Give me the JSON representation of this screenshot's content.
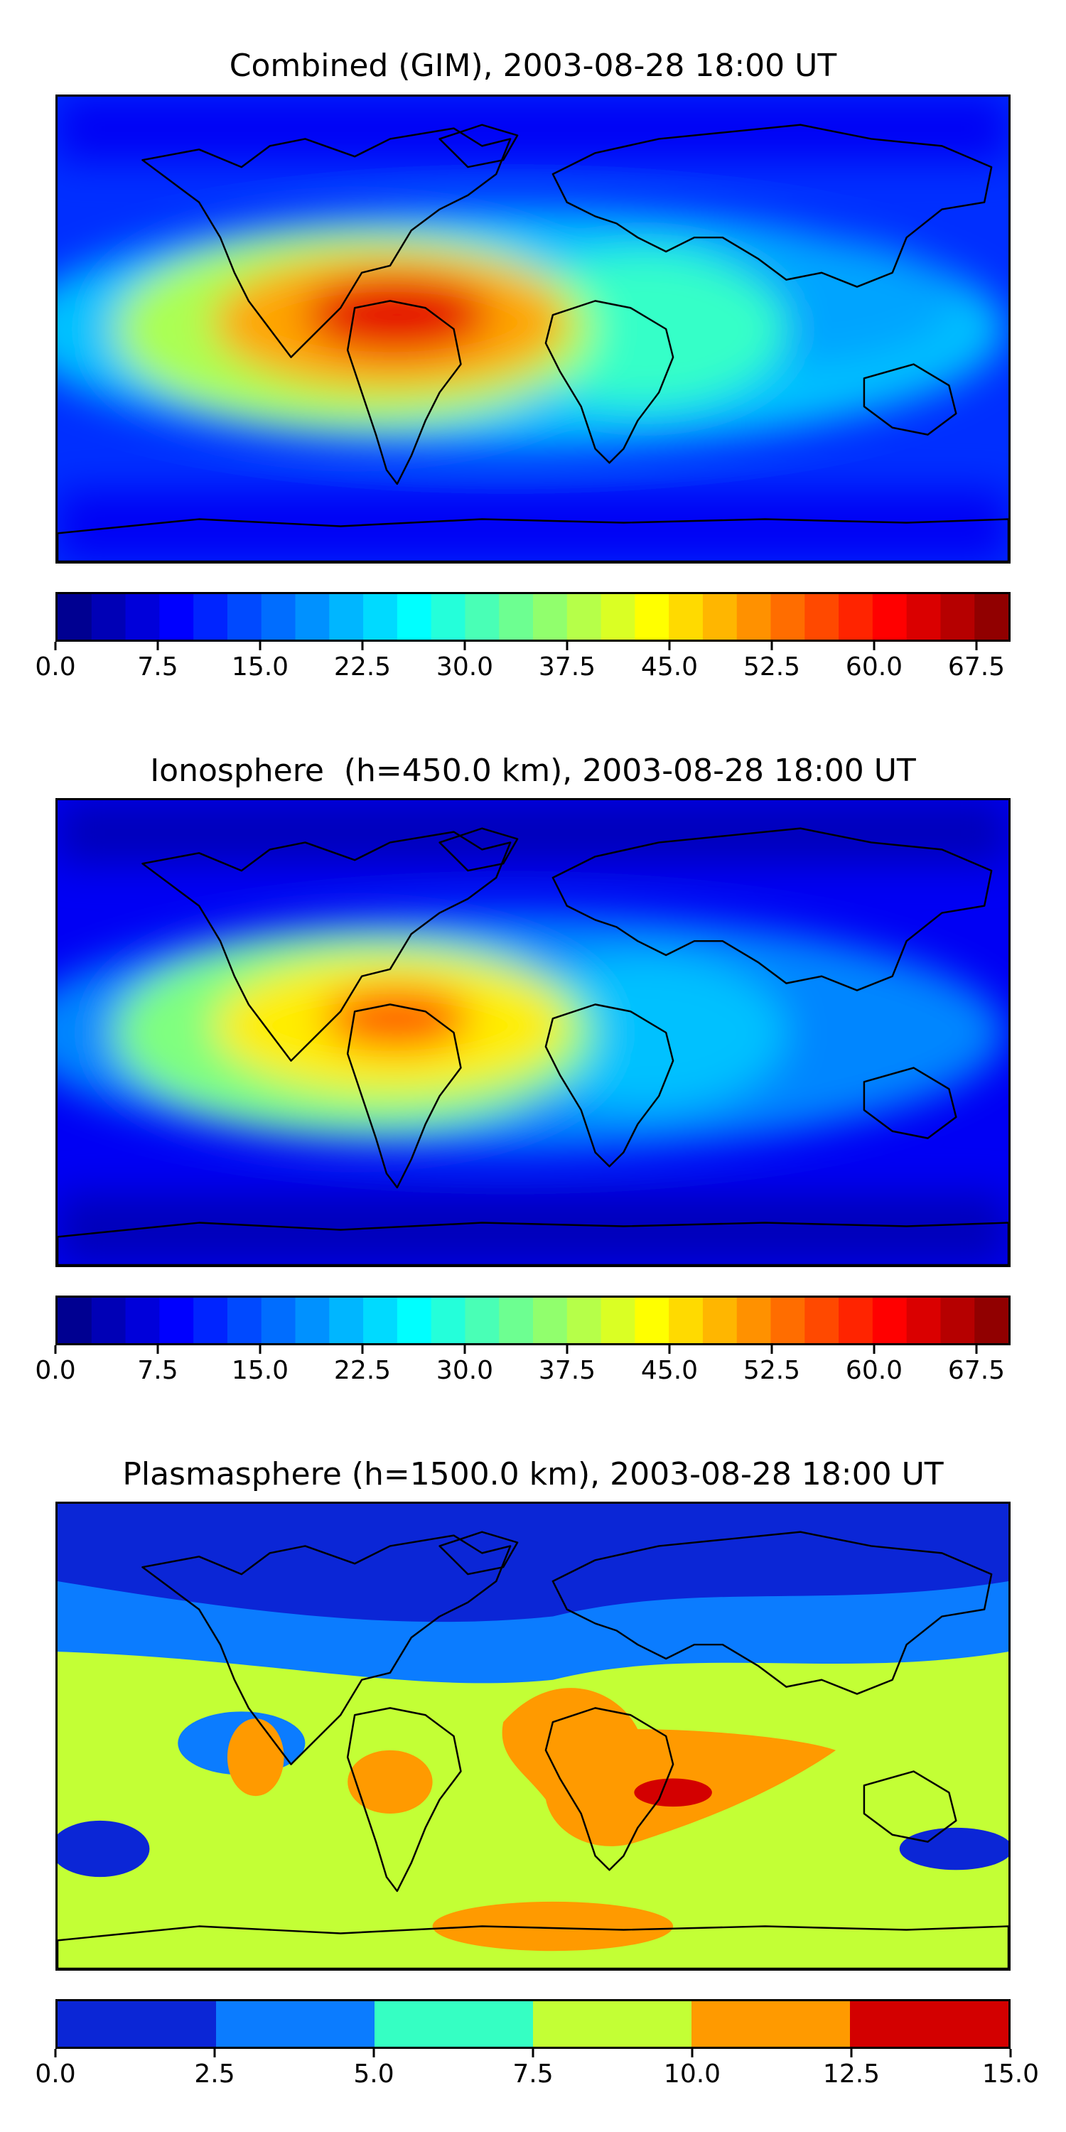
{
  "chart_data": [
    {
      "type": "heatmap",
      "title": "Combined (GIM), 2003-08-28 18:00 UT",
      "xlabel": "",
      "ylabel": "",
      "grid": false,
      "colorbar": {
        "range": [
          0.0,
          70.0
        ],
        "levels": 28,
        "tick_labels": [
          "0.0",
          "7.5",
          "15.0",
          "22.5",
          "30.0",
          "37.5",
          "45.0",
          "52.5",
          "60.0",
          "67.5"
        ],
        "tick_values": [
          0.0,
          7.5,
          15.0,
          22.5,
          30.0,
          37.5,
          45.0,
          52.5,
          60.0,
          67.5
        ]
      },
      "features": [
        {
          "region": "background",
          "value": 12
        },
        {
          "region": "equatorial band",
          "value": 22
        },
        {
          "region": "eastern Pacific / Atlantic crest",
          "value": 38
        },
        {
          "region": "Atlantic core",
          "value": 50
        },
        {
          "region": "South America peak",
          "value": 63
        },
        {
          "region": "Africa band",
          "value": 30
        },
        {
          "region": "Asia / Indian Ocean tail",
          "value": 20
        },
        {
          "region": "high latitudes",
          "value": 8
        }
      ]
    },
    {
      "type": "heatmap",
      "title": "Ionosphere  (h=450.0 km), 2003-08-28 18:00 UT",
      "xlabel": "",
      "ylabel": "",
      "grid": false,
      "colorbar": {
        "range": [
          0.0,
          70.0
        ],
        "levels": 28,
        "tick_labels": [
          "0.0",
          "7.5",
          "15.0",
          "22.5",
          "30.0",
          "37.5",
          "45.0",
          "52.5",
          "60.0",
          "67.5"
        ],
        "tick_values": [
          0.0,
          7.5,
          15.0,
          22.5,
          30.0,
          37.5,
          45.0,
          52.5,
          60.0,
          67.5
        ]
      },
      "features": [
        {
          "region": "background",
          "value": 8
        },
        {
          "region": "equatorial band",
          "value": 18
        },
        {
          "region": "eastern Pacific / Atlantic crest",
          "value": 35
        },
        {
          "region": "Atlantic core",
          "value": 45
        },
        {
          "region": "South America peak",
          "value": 55
        },
        {
          "region": "Africa band",
          "value": 22
        },
        {
          "region": "high latitudes",
          "value": 4
        }
      ]
    },
    {
      "type": "heatmap",
      "title": "Plasmasphere (h=1500.0 km), 2003-08-28 18:00 UT",
      "xlabel": "",
      "ylabel": "",
      "grid": false,
      "colorbar": {
        "range": [
          0.0,
          15.0
        ],
        "levels": 6,
        "tick_labels": [
          "0.0",
          "2.5",
          "5.0",
          "7.5",
          "10.0",
          "12.5",
          "15.0"
        ],
        "tick_values": [
          0.0,
          2.5,
          5.0,
          7.5,
          10.0,
          12.5,
          15.0
        ]
      },
      "features": [
        {
          "region": "northern high latitudes",
          "value": 1.5
        },
        {
          "region": "northern mid latitudes",
          "value": 4
        },
        {
          "region": "tropics",
          "value": 8.5
        },
        {
          "region": "southern Africa / Indian Ocean",
          "value": 11
        },
        {
          "region": "Madagascar maximum",
          "value": 13
        },
        {
          "region": "southern ocean lows",
          "value": 2
        }
      ]
    }
  ],
  "colors": {
    "jet_stops": [
      "#00007f",
      "#0000ff",
      "#007fff",
      "#00ffff",
      "#7fff7f",
      "#ffff00",
      "#ff7f00",
      "#ff0000",
      "#7f0000"
    ],
    "plasma_bins": [
      "#0b26d6",
      "#0b7cff",
      "#35ffc3",
      "#c3ff35",
      "#ff9a00",
      "#d30000"
    ]
  }
}
